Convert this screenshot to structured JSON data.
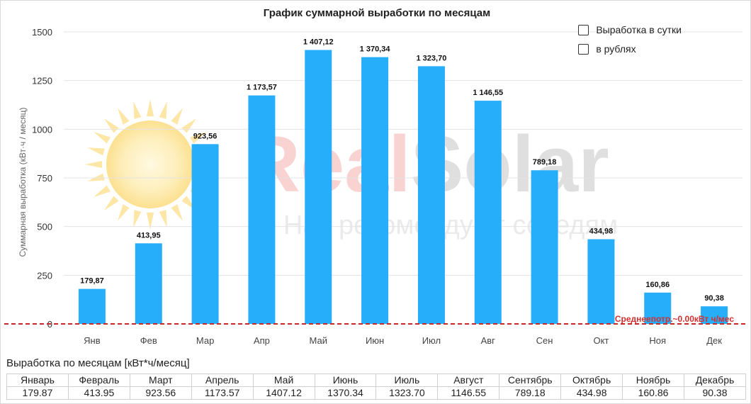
{
  "chart_data": {
    "type": "bar",
    "title": "График суммарной выработки по месяцам",
    "ylabel": "Суммарная выработка (кВт·ч / месяц)",
    "xlabel": "",
    "ylim": [
      0,
      1500
    ],
    "yticks": [
      0,
      250,
      500,
      750,
      1000,
      1250,
      1500
    ],
    "categories": [
      "Янв",
      "Фев",
      "Мар",
      "Апр",
      "Май",
      "Июн",
      "Июл",
      "Авг",
      "Сен",
      "Окт",
      "Ноя",
      "Дек"
    ],
    "values": [
      179.87,
      413.95,
      923.56,
      1173.57,
      1407.12,
      1370.34,
      1323.7,
      1146.55,
      789.18,
      434.98,
      160.86,
      90.38
    ],
    "data_labels": [
      "179,87",
      "413,95",
      "923,56",
      "1 173,57",
      "1 407,12",
      "1 370,34",
      "1 323,70",
      "1 146,55",
      "789,18",
      "434,98",
      "160,86",
      "90,38"
    ],
    "bar_color": "#27aefb",
    "grid": true,
    "avg_line": {
      "value": 0,
      "label": "Среднеепотр.~0.00кВт ч/мес",
      "color": "#d32f2f"
    }
  },
  "watermark": {
    "text_red": "Real",
    "text_gray": "Solar",
    "subtitle": "Нас рекомендуют соседям"
  },
  "legend": {
    "items": [
      {
        "label": "Выработка в сутки",
        "checked": false
      },
      {
        "label": "в рублях",
        "checked": false
      }
    ]
  },
  "table": {
    "title": "Выработка по месяцам [кВт*ч/месяц]",
    "headers": [
      "Январь",
      "Февраль",
      "Март",
      "Апрель",
      "Май",
      "Июнь",
      "Июль",
      "Август",
      "Сентябрь",
      "Октябрь",
      "Ноябрь",
      "Декабрь"
    ],
    "values": [
      "179.87",
      "413.95",
      "923.56",
      "1173.57",
      "1407.12",
      "1370.34",
      "1323.70",
      "1146.55",
      "789.18",
      "434.98",
      "160.86",
      "90.38"
    ]
  }
}
